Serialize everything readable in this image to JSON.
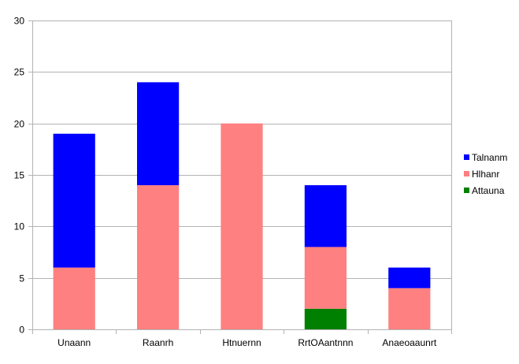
{
  "chart_data": {
    "type": "bar",
    "stacked": true,
    "categories": [
      "Unaann",
      "Raanrh",
      "Htnuernn",
      "RrtOAantnnn",
      "Anaeoaaunrt"
    ],
    "series": [
      {
        "name": "Attauna",
        "color": "#008000",
        "values": [
          0,
          0,
          0,
          2,
          0
        ]
      },
      {
        "name": "Hlhanr",
        "color": "#ff8080",
        "values": [
          6,
          14,
          20,
          6,
          4
        ]
      },
      {
        "name": "Talnanm",
        "color": "#0000ff",
        "values": [
          13,
          10,
          0,
          6,
          2
        ]
      }
    ],
    "legend_order": [
      "Talnanm",
      "Hlhanr",
      "Attauna"
    ],
    "y_ticks": [
      0,
      5,
      10,
      15,
      20,
      25,
      30
    ],
    "ylim": [
      0,
      30
    ],
    "grid": true,
    "legend_position": "right",
    "title": "",
    "xlabel": "",
    "ylabel": ""
  }
}
